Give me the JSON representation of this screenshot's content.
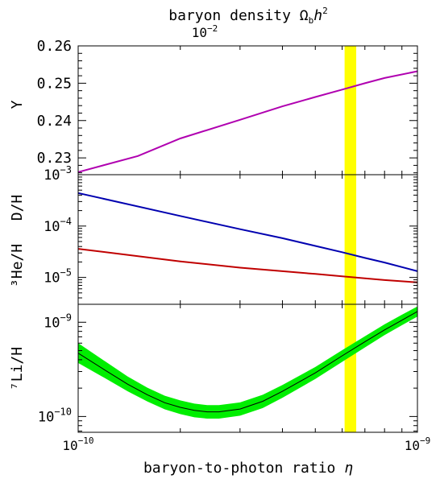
{
  "chart_data": {
    "type": "line",
    "x_axis": {
      "label": "baryon-to-photon ratio",
      "label_symbol": "η",
      "scale": "log",
      "xlim": [
        1e-10,
        1e-09
      ],
      "tick_labels": [
        {
          "value": 1e-10,
          "mantissa": "10",
          "exp": "−10"
        },
        {
          "value": 1e-09,
          "mantissa": "10",
          "exp": "−9"
        }
      ]
    },
    "top_axis": {
      "label": "baryon density Ω",
      "label_sub": "b",
      "label_tail": "h",
      "label_sup": "2",
      "tick_label": {
        "mantissa": "10",
        "exp": "−2"
      }
    },
    "highlight_band": {
      "x_range": [
        6.1e-10,
        6.6e-10
      ],
      "color": "#ffff00"
    },
    "panels": [
      {
        "id": "Y",
        "ylabel": "Y",
        "scale": "linear",
        "ylim": [
          0.2255,
          0.26
        ],
        "ytick_labels": [
          "0.23",
          "0.24",
          "0.25",
          "0.26"
        ],
        "ytick_values": [
          0.23,
          0.24,
          0.25,
          0.26
        ],
        "series": [
          {
            "color": "#b000b0",
            "x": [
              1e-10,
              1.5e-10,
              2e-10,
              3e-10,
              4e-10,
              5e-10,
              6e-10,
              7e-10,
              8e-10,
              1e-09
            ],
            "y": [
              0.2262,
              0.2305,
              0.2352,
              0.2402,
              0.2438,
              0.2463,
              0.2483,
              0.25,
              0.2514,
              0.2532
            ]
          }
        ]
      },
      {
        "id": "DH",
        "ylabel_lines": [
          "D/H",
          "³He/H"
        ],
        "scale": "log",
        "ylim": [
          3e-06,
          0.001
        ],
        "ytick_labels": [
          {
            "value": 0.001,
            "mantissa": "10",
            "exp": "−3"
          },
          {
            "value": 0.0001,
            "mantissa": "10",
            "exp": "−4"
          },
          {
            "value": 1e-05,
            "mantissa": "10",
            "exp": "−5"
          }
        ],
        "series": [
          {
            "color": "#0000b0",
            "x": [
              1e-10,
              2e-10,
              3e-10,
              4e-10,
              5e-10,
              6e-10,
              7e-10,
              8e-10,
              1e-09
            ],
            "y": [
              0.00044,
              0.000157,
              8.7e-05,
              5.8e-05,
              4.1e-05,
              3.1e-05,
              2.4e-05,
              1.95e-05,
              1.32e-05
            ]
          },
          {
            "color": "#c00000",
            "x": [
              1e-10,
              2e-10,
              3e-10,
              4e-10,
              5e-10,
              6e-10,
              7e-10,
              8e-10,
              1e-09
            ],
            "y": [
              3.6e-05,
              2.05e-05,
              1.55e-05,
              1.32e-05,
              1.17e-05,
              1.05e-05,
              9.6e-06,
              8.9e-06,
              8e-06
            ]
          }
        ]
      },
      {
        "id": "Li",
        "ylabel": "⁷Li/H",
        "scale": "log",
        "ylim": [
          6.8e-11,
          1.55e-09
        ],
        "ytick_labels": [
          {
            "value": 1e-09,
            "mantissa": "10",
            "exp": "−9"
          },
          {
            "value": 1e-10,
            "mantissa": "10",
            "exp": "−10"
          }
        ],
        "band_color": "#00ee00",
        "series": [
          {
            "color": "#000000",
            "x": [
              1e-10,
              1.2e-10,
              1.4e-10,
              1.6e-10,
              1.8e-10,
              2e-10,
              2.2e-10,
              2.4e-10,
              2.6e-10,
              3e-10,
              3.5e-10,
              4e-10,
              5e-10,
              6e-10,
              7e-10,
              8e-10,
              9e-10,
              1e-09
            ],
            "y": [
              4.7e-10,
              3.1e-10,
              2.2e-10,
              1.7e-10,
              1.4e-10,
              1.25e-10,
              1.16e-10,
              1.12e-10,
              1.12e-10,
              1.2e-10,
              1.45e-10,
              1.85e-10,
              2.9e-10,
              4.4e-10,
              6.2e-10,
              8.3e-10,
              1.05e-09,
              1.3e-09
            ],
            "band_lower": [
              3.7e-10,
              2.55e-10,
              1.85e-10,
              1.44e-10,
              1.19e-10,
              1.06e-10,
              9.8e-11,
              9.5e-11,
              9.5e-11,
              1.02e-10,
              1.23e-10,
              1.58e-10,
              2.5e-10,
              3.8e-10,
              5.4e-10,
              7.3e-10,
              9.3e-10,
              1.15e-09
            ],
            "band_upper": [
              6e-10,
              3.85e-10,
              2.65e-10,
              2.02e-10,
              1.66e-10,
              1.48e-10,
              1.37e-10,
              1.32e-10,
              1.32e-10,
              1.41e-10,
              1.7e-10,
              2.16e-10,
              3.35e-10,
              5.05e-10,
              7.1e-10,
              9.5e-10,
              1.2e-09,
              1.47e-09
            ]
          }
        ]
      }
    ]
  }
}
